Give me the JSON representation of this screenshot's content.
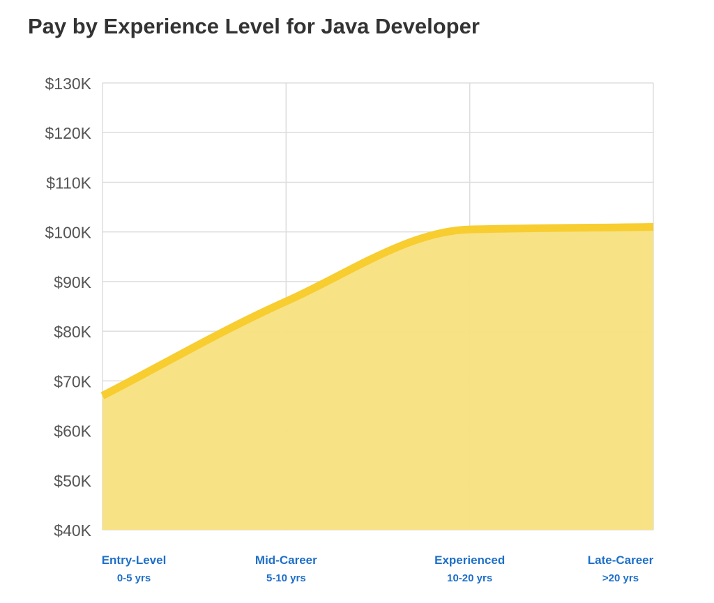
{
  "chart_data": {
    "type": "area",
    "title": "Pay by Experience Level for Java Developer",
    "categories": [
      "Entry-Level",
      "Mid-Career",
      "Experienced",
      "Late-Career"
    ],
    "category_sublabels": [
      "0-5 yrs",
      "5-10 yrs",
      "10-20 yrs",
      ">20 yrs"
    ],
    "values": [
      67000,
      86000,
      100500,
      101000
    ],
    "ylim": [
      40000,
      130000
    ],
    "yticks": [
      40000,
      50000,
      60000,
      70000,
      80000,
      90000,
      100000,
      110000,
      120000,
      130000
    ],
    "ytick_labels": [
      "$40K",
      "$50K",
      "$60K",
      "$70K",
      "$80K",
      "$90K",
      "$100K",
      "$110K",
      "$120K",
      "$130K"
    ],
    "grid": true,
    "colors": {
      "line": "#f7cd30",
      "fill": "#f8e07f",
      "grid": "#dddddd",
      "xlabels": "#1e6fc8"
    }
  }
}
